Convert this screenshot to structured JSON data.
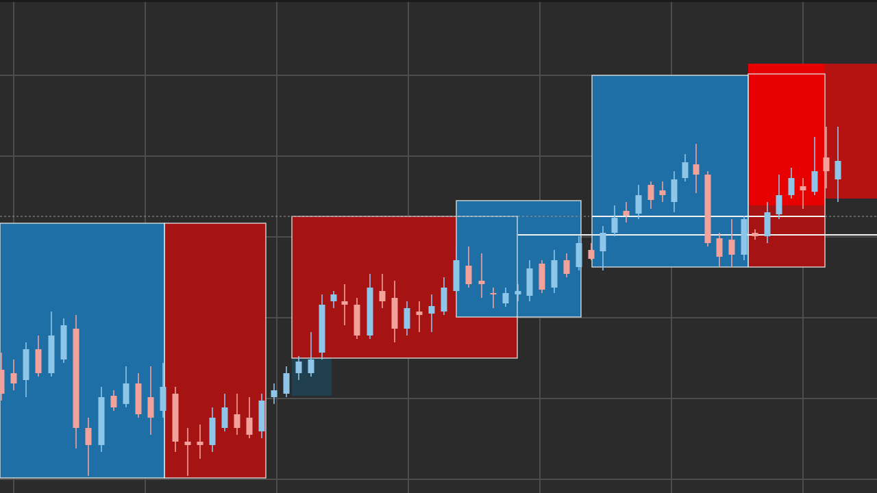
{
  "chart_data": {
    "type": "candlestick",
    "x": [
      2,
      20,
      38,
      56,
      75,
      93,
      111,
      129,
      148,
      166,
      184,
      202,
      220,
      238,
      256,
      274,
      292,
      310,
      328,
      346,
      364,
      382,
      400,
      418,
      436,
      454,
      470,
      487,
      503,
      521,
      540,
      558,
      576,
      594,
      612,
      630,
      648,
      666,
      684,
      703,
      720,
      738,
      756,
      773,
      791,
      809,
      827,
      845,
      863,
      880,
      897,
      914,
      932,
      950,
      967,
      984,
      1000,
      1016,
      1033,
      1050,
      1068,
      1086,
      1102,
      1120,
      1137,
      1155,
      1172,
      1189,
      1206,
      1223
    ],
    "open": [
      180,
      175,
      165,
      210,
      175,
      195,
      240,
      95,
      70,
      142,
      130,
      160,
      140,
      120,
      145,
      75,
      75,
      70,
      95,
      115,
      110,
      90,
      140,
      145,
      175,
      175,
      205,
      280,
      280,
      275,
      230,
      295,
      285,
      240,
      265,
      262,
      265,
      295,
      332,
      310,
      292,
      277,
      290,
      288,
      335,
      300,
      340,
      330,
      355,
      353,
      380,
      412,
      408,
      450,
      442,
      425,
      460,
      480,
      465,
      372,
      370,
      348,
      380,
      375,
      407,
      435,
      448,
      440,
      490,
      458
    ],
    "high": [
      205,
      195,
      220,
      230,
      265,
      255,
      260,
      110,
      155,
      150,
      185,
      175,
      185,
      190,
      155,
      95,
      100,
      125,
      145,
      145,
      140,
      145,
      160,
      185,
      200,
      235,
      290,
      295,
      305,
      285,
      320,
      320,
      310,
      280,
      280,
      290,
      315,
      360,
      360,
      350,
      300,
      300,
      305,
      340,
      340,
      355,
      350,
      375,
      365,
      390,
      420,
      425,
      450,
      455,
      455,
      470,
      495,
      510,
      470,
      380,
      400,
      405,
      385,
      425,
      465,
      475,
      460,
      520,
      535,
      535
    ],
    "low": [
      135,
      150,
      140,
      170,
      170,
      190,
      65,
      25,
      60,
      120,
      125,
      110,
      85,
      110,
      60,
      25,
      50,
      60,
      90,
      85,
      80,
      80,
      130,
      140,
      165,
      170,
      195,
      270,
      245,
      225,
      225,
      270,
      220,
      230,
      235,
      235,
      260,
      290,
      300,
      285,
      270,
      272,
      280,
      280,
      292,
      292,
      315,
      325,
      340,
      325,
      375,
      395,
      400,
      415,
      425,
      410,
      455,
      438,
      360,
      330,
      330,
      340,
      370,
      365,
      400,
      430,
      415,
      435,
      445,
      425
    ],
    "close": [
      145,
      160,
      210,
      175,
      230,
      245,
      95,
      70,
      140,
      125,
      160,
      115,
      110,
      155,
      75,
      70,
      70,
      110,
      125,
      95,
      85,
      135,
      150,
      175,
      192,
      195,
      275,
      290,
      275,
      230,
      300,
      280,
      240,
      270,
      260,
      273,
      300,
      340,
      305,
      305,
      290,
      292,
      295,
      328,
      297,
      340,
      320,
      365,
      342,
      380,
      402,
      405,
      435,
      428,
      435,
      458,
      483,
      465,
      365,
      345,
      348,
      400,
      375,
      410,
      435,
      460,
      442,
      470,
      470,
      485
    ],
    "up_color": "#8ec6ea",
    "down_color": "#f2a29b",
    "xlim": [
      0,
      1280
    ],
    "ylim": [
      0,
      720
    ],
    "xticks": [
      20,
      212,
      404,
      596,
      788,
      980,
      1172
    ],
    "yticks": [
      20,
      138,
      256,
      374,
      492,
      610
    ],
    "grid": true,
    "zones": [
      {
        "color": "#21404f",
        "x": [
          426,
          484
        ],
        "y": [
          142,
          197
        ],
        "outline": false
      },
      {
        "color": "#1d6fa5",
        "x": [
          0,
          240
        ],
        "y": [
          22,
          394
        ],
        "outline": true
      },
      {
        "color": "#a61313",
        "x": [
          240,
          388
        ],
        "y": [
          22,
          394
        ],
        "outline": true
      },
      {
        "color": "#a61313",
        "x": [
          426,
          755
        ],
        "y": [
          197,
          404
        ],
        "outline": true
      },
      {
        "color": "#1d6fa5",
        "x": [
          666,
          848
        ],
        "y": [
          257,
          427
        ],
        "outline": true
      },
      {
        "color": "#1d6fa5",
        "x": [
          864,
          1092
        ],
        "y": [
          330,
          610
        ],
        "outline": true
      },
      {
        "color": "#a61313",
        "x": [
          1092,
          1204
        ],
        "y": [
          330,
          612
        ],
        "outline": true
      },
      {
        "color": "#b51212",
        "x": [
          1204,
          1280
        ],
        "y": [
          430,
          627
        ],
        "outline": false
      },
      {
        "color": "#e60000",
        "x": [
          1092,
          1204
        ],
        "y": [
          420,
          627
        ],
        "outline": false
      }
    ]
  }
}
